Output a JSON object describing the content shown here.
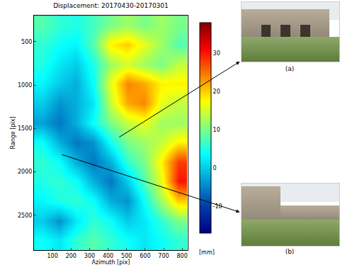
{
  "chart_data": {
    "type": "heatmap",
    "title": "Displacement: 20170430-20170301",
    "x_label": "Azimuth [pix]",
    "y_label": "Range [pix]",
    "x": [
      46,
      138,
      230,
      322,
      414,
      506,
      598,
      690,
      782
    ],
    "y": [
      312,
      537,
      762,
      987,
      1212,
      1437,
      1662,
      1887,
      2112,
      2337,
      2562,
      2787
    ],
    "cells": [
      [
        8,
        6,
        5,
        7,
        10,
        12,
        10,
        12,
        10
      ],
      [
        6,
        4,
        3,
        8,
        18,
        20,
        16,
        12,
        8
      ],
      [
        5,
        2,
        0,
        5,
        12,
        15,
        12,
        10,
        14
      ],
      [
        3,
        0,
        -2,
        4,
        16,
        24,
        22,
        18,
        18
      ],
      [
        0,
        -4,
        -2,
        2,
        14,
        22,
        24,
        16,
        14
      ],
      [
        -3,
        -6,
        -2,
        4,
        10,
        14,
        16,
        12,
        12
      ],
      [
        4,
        -2,
        -6,
        -4,
        4,
        10,
        12,
        14,
        18
      ],
      [
        6,
        4,
        -2,
        -6,
        -2,
        6,
        10,
        18,
        28
      ],
      [
        5,
        6,
        4,
        -2,
        -6,
        0,
        8,
        16,
        30
      ],
      [
        3,
        5,
        6,
        4,
        -2,
        -4,
        4,
        12,
        20
      ],
      [
        0,
        -4,
        2,
        6,
        4,
        0,
        2,
        6,
        10
      ],
      [
        4,
        2,
        6,
        8,
        6,
        4,
        2,
        4,
        6
      ]
    ],
    "xlim": [
      0,
      830
    ],
    "xticks": [
      100,
      200,
      300,
      400,
      500,
      600,
      700,
      800
    ],
    "ylim": [
      2900,
      200
    ],
    "yticks": [
      500,
      1000,
      1500,
      2000,
      2500
    ],
    "colorbar_label": "[mm]",
    "colorbar_range": [
      -17,
      38
    ],
    "colorbar_ticks": [
      -10,
      0,
      10,
      20,
      30
    ],
    "annotations": [
      {
        "text": "(a)",
        "x": 460,
        "y": 1600
      },
      {
        "text": "(b)",
        "x": 150,
        "y": 1800
      }
    ]
  }
}
